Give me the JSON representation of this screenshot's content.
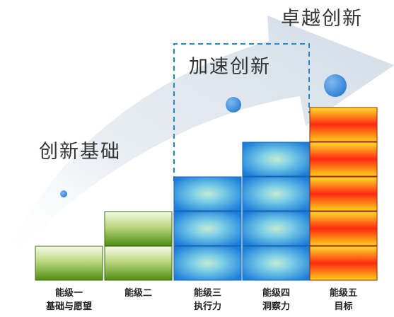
{
  "stages": {
    "foundation": "创新基础",
    "acceleration": "加速创新",
    "excellence": "卓越创新"
  },
  "levels": [
    {
      "name": "能级一",
      "sub": "基础与愿望",
      "blocks": 1,
      "style": "green"
    },
    {
      "name": "能级二",
      "sub": "",
      "blocks": 2,
      "style": "green"
    },
    {
      "name": "能级三",
      "sub": "执行力",
      "blocks": 3,
      "style": "blue"
    },
    {
      "name": "能级四",
      "sub": "洞察力",
      "blocks": 4,
      "style": "blue"
    },
    {
      "name": "能级五",
      "sub": "目标",
      "blocks": 5,
      "style": "fire"
    }
  ],
  "colors": {
    "arrow": "#dfe6ee",
    "dot": "#2e7fd6",
    "green_top": "#f7fae8",
    "green_bottom": "#4f8e12",
    "blue_center": "#c5ead2",
    "blue_edge": "#1c7fdc",
    "fire_top": "#ffe02a",
    "fire_mid": "#ff2a10",
    "dashed": "#2a86cf"
  }
}
